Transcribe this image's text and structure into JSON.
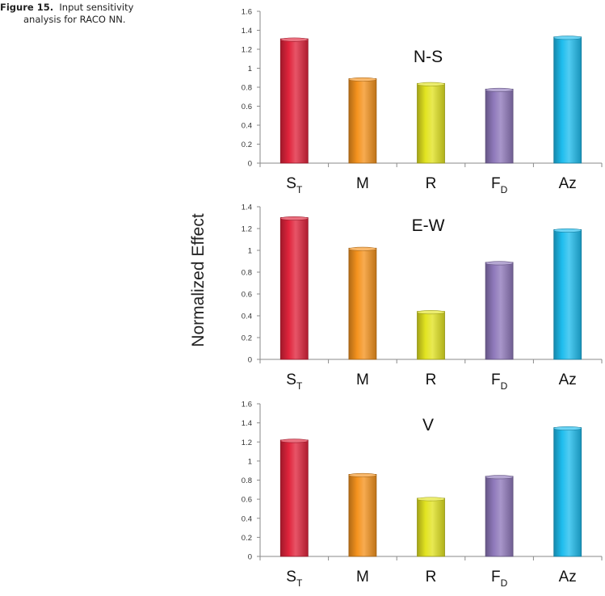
{
  "caption": {
    "label": "Figure 15.",
    "text_line1": "Input sensitivity",
    "text_line2": "analysis for RACO NN."
  },
  "ylabel": "Normalized Effect",
  "colors": {
    "St": "#e0243c",
    "M": "#f5931e",
    "R": "#e2e321",
    "Fd": "#8f79bb",
    "Az": "#1fbdee"
  },
  "chart_data": [
    {
      "type": "bar",
      "title": "N-S",
      "categories": [
        "S_T",
        "M",
        "R",
        "F_D",
        "Az"
      ],
      "values": [
        1.31,
        0.89,
        0.84,
        0.78,
        1.33
      ],
      "ylim": [
        0,
        1.6
      ],
      "yticks": [
        "0",
        "0.2",
        "0.4",
        "0.6",
        "0.8",
        "1",
        "1.2",
        "1.4",
        "1.6"
      ]
    },
    {
      "type": "bar",
      "title": "E-W",
      "categories": [
        "S_T",
        "M",
        "R",
        "F_D",
        "Az"
      ],
      "values": [
        1.3,
        1.02,
        0.44,
        0.89,
        1.19
      ],
      "ylim": [
        0,
        1.4
      ],
      "yticks": [
        "0",
        "0.2",
        "0.4",
        "0.6",
        "0.8",
        "1",
        "1.2",
        "1.4"
      ]
    },
    {
      "type": "bar",
      "title": "V",
      "categories": [
        "S_T",
        "M",
        "R",
        "F_D",
        "Az"
      ],
      "values": [
        1.22,
        0.86,
        0.61,
        0.84,
        1.35
      ],
      "ylim": [
        0,
        1.6
      ],
      "yticks": [
        "0",
        "0.2",
        "0.4",
        "0.6",
        "0.8",
        "1",
        "1.2",
        "1.4",
        "1.6"
      ]
    }
  ]
}
